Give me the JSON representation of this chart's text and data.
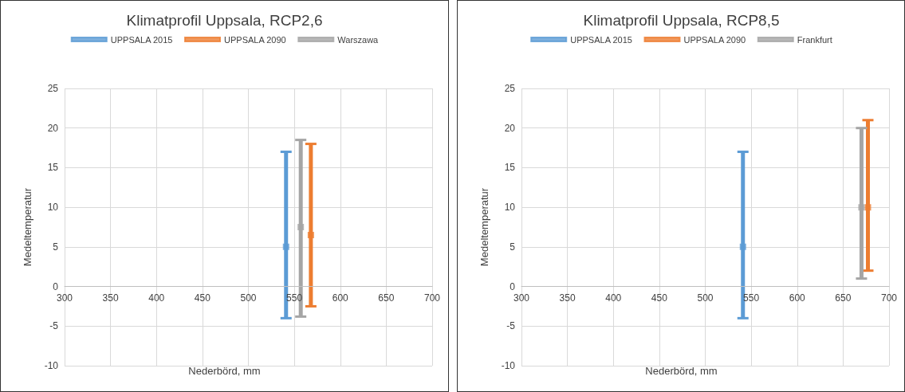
{
  "chart_data": [
    {
      "type": "scatter",
      "title": "Klimatprofil Uppsala, RCP2,6",
      "xlabel": "Nederbörd, mm",
      "ylabel": "Medeltemperatur",
      "xlim": [
        300,
        700
      ],
      "xticks": [
        300,
        350,
        400,
        450,
        500,
        550,
        600,
        650,
        700
      ],
      "ylim": [
        -10,
        25
      ],
      "yticks": [
        -10,
        -5,
        0,
        5,
        10,
        15,
        20,
        25
      ],
      "grid": true,
      "legend": "top",
      "marker": "square",
      "series": [
        {
          "name": "UPPSALA 2015",
          "color": "#5b9bd5",
          "x": [
            541
          ],
          "values": [
            5
          ],
          "errors": [
            [
              -4,
              17
            ]
          ]
        },
        {
          "name": "UPPSALA 2090",
          "color": "#ed7d31",
          "x": [
            568
          ],
          "values": [
            6.5
          ],
          "errors": [
            [
              -2.5,
              18
            ]
          ]
        },
        {
          "name": "Warszawa",
          "color": "#a5a5a5",
          "x": [
            557
          ],
          "values": [
            7.5
          ],
          "errors": [
            [
              -3.8,
              18.5
            ]
          ]
        }
      ]
    },
    {
      "type": "scatter",
      "title": "Klimatprofil Uppsala, RCP8,5",
      "xlabel": "Nederbörd, mm",
      "ylabel": "Medeltemperatur",
      "xlim": [
        300,
        700
      ],
      "xticks": [
        300,
        350,
        400,
        450,
        500,
        550,
        600,
        650,
        700
      ],
      "ylim": [
        -10,
        25
      ],
      "yticks": [
        -10,
        -5,
        0,
        5,
        10,
        15,
        20,
        25
      ],
      "grid": true,
      "legend": "top",
      "marker": "square",
      "series": [
        {
          "name": "UPPSALA 2015",
          "color": "#5b9bd5",
          "x": [
            541
          ],
          "values": [
            5
          ],
          "errors": [
            [
              -4,
              17
            ]
          ]
        },
        {
          "name": "UPPSALA 2090",
          "color": "#ed7d31",
          "x": [
            677
          ],
          "values": [
            10
          ],
          "errors": [
            [
              2,
              21
            ]
          ]
        },
        {
          "name": "Frankfurt",
          "color": "#a5a5a5",
          "x": [
            670
          ],
          "values": [
            10
          ],
          "errors": [
            [
              1,
              20
            ]
          ]
        }
      ]
    }
  ]
}
